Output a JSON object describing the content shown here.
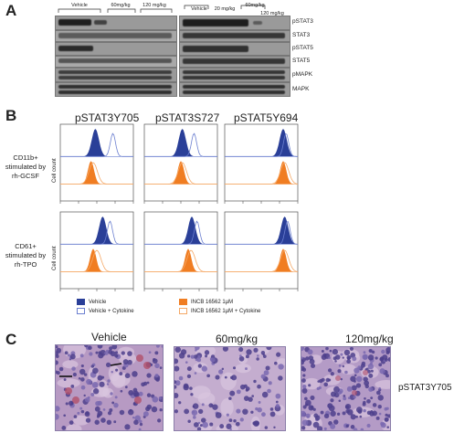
{
  "panels": {
    "a": "A",
    "b": "B",
    "c": "C"
  },
  "blot_left": {
    "groups": [
      "Vehicle",
      "60mg/kg",
      "120 mg/kg"
    ],
    "labels": [
      "pSTAT3",
      "STAT3",
      "pSTAT5",
      "STAT5",
      "pMAPK",
      "MAPK"
    ]
  },
  "blot_right": {
    "groups": [
      "Vehicle",
      "20 mg/kg",
      "60mg/kg",
      "120 mg/kg"
    ],
    "labels": [
      "pSTAT3",
      "STAT3",
      "pSTAT5",
      "STAT5",
      "pMAPK",
      "MAPK"
    ]
  },
  "flow": {
    "columns": [
      "pSTAT3Y705",
      "pSTAT3S727",
      "pSTAT5Y694"
    ],
    "rows": [
      {
        "label_l1": "CD11b+",
        "label_l2": "stimulated by",
        "label_l3": "rh-GCSF"
      },
      {
        "label_l1": "CD61+",
        "label_l2": "stimulated by",
        "label_l3": "rh-TPO"
      }
    ],
    "y_axis_label": "Cell count",
    "colors": {
      "vehicle": "#2a3f98",
      "vehicle_cyt": "#6b7fd0",
      "incb": "#f07d22",
      "incb_cyt": "#f5a866"
    },
    "legend": [
      "Vehicle",
      "Vehicle + Cytokine",
      "INCB 16562 1μM",
      "INCB 16562 1μM + Cytokine"
    ]
  },
  "histology": {
    "titles": [
      "Vehicle",
      "60mg/kg",
      "120mg/kg"
    ],
    "stain_label": "pSTAT3Y705"
  }
}
